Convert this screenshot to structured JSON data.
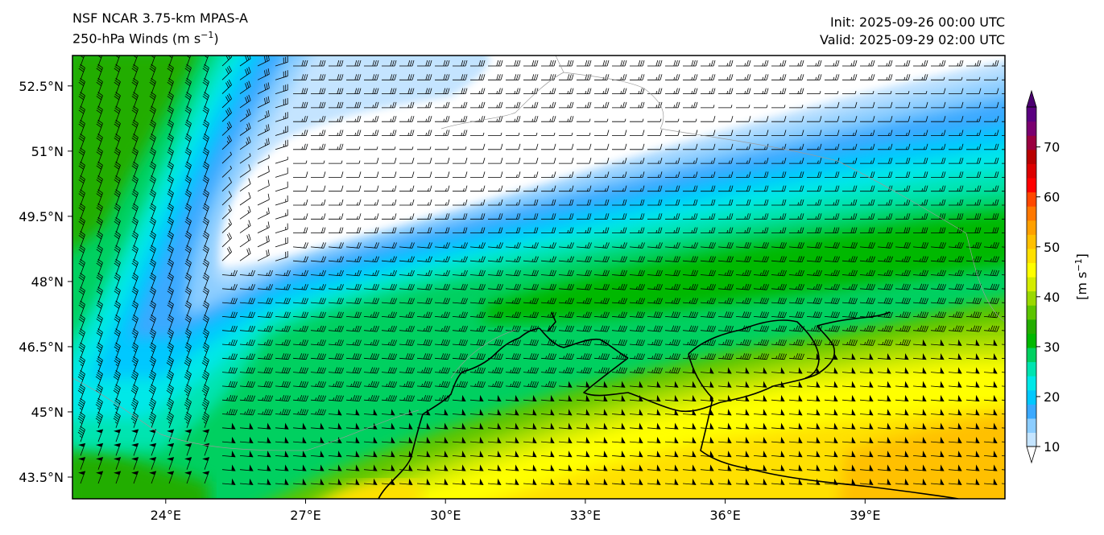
{
  "header": {
    "model": "NSF NCAR 3.75-km MPAS-A",
    "field": "250-hPa Winds (m s",
    "field_exp": "−1",
    "field_end": ")",
    "init": "Init: 2025-09-26 00:00 UTC",
    "valid": "Valid: 2025-09-29 02:00 UTC"
  },
  "map": {
    "lon_range": [
      22,
      42
    ],
    "lat_range": [
      43,
      53.2
    ],
    "lon_ticks": [
      "24°E",
      "27°E",
      "30°E",
      "33°E",
      "36°E",
      "39°E"
    ],
    "lon_tick_values": [
      24,
      27,
      30,
      33,
      36,
      39
    ],
    "lat_ticks": [
      "52.5°N",
      "51°N",
      "49.5°N",
      "48°N",
      "46.5°N",
      "45°N",
      "43.5°N"
    ],
    "lat_tick_values": [
      52.5,
      51,
      49.5,
      48,
      46.5,
      45,
      43.5
    ]
  },
  "colorbar": {
    "label": "[m s",
    "label_exp": "−1",
    "label_end": "]",
    "ticks": [
      "10",
      "20",
      "30",
      "40",
      "50",
      "60",
      "70"
    ],
    "tick_values": [
      10,
      20,
      30,
      40,
      50,
      60,
      70
    ],
    "range": [
      10,
      78
    ],
    "colors": [
      "#c4e4ff",
      "#8ccdff",
      "#3ba9ff",
      "#00c8ff",
      "#00e8e8",
      "#00e4b0",
      "#00d060",
      "#00b800",
      "#23ad00",
      "#5cc400",
      "#9ad800",
      "#d4ec00",
      "#ffff00",
      "#ffe000",
      "#ffc000",
      "#ffa000",
      "#ff7800",
      "#ff4800",
      "#ff0000",
      "#dc0000",
      "#b80000",
      "#9a0040",
      "#7a0070",
      "#5a0080"
    ]
  }
}
